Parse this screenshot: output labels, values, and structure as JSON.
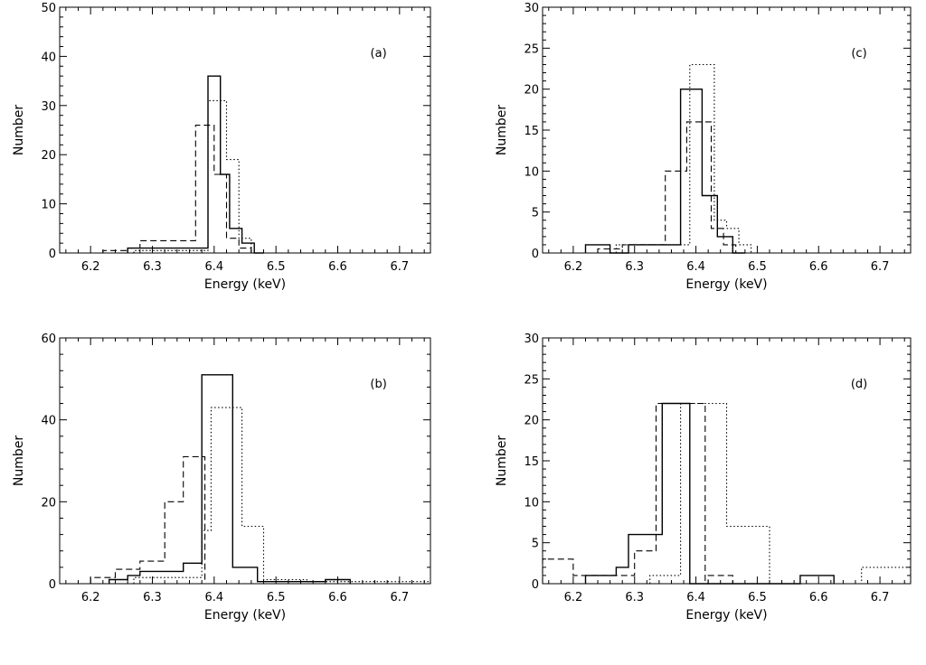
{
  "chart_data": [
    {
      "type": "histogram",
      "panel_label": "(a)",
      "xlabel": "Energy (keV)",
      "ylabel": "Number",
      "xlim": [
        6.15,
        6.75
      ],
      "ylim": [
        0,
        50
      ],
      "xticks": [
        "6.2",
        "6.3",
        "6.4",
        "6.5",
        "6.6",
        "6.7"
      ],
      "xtick_values": [
        6.2,
        6.3,
        6.4,
        6.5,
        6.6,
        6.7
      ],
      "yticks": [
        "0",
        "10",
        "20",
        "30",
        "40",
        "50"
      ],
      "ytick_values": [
        0,
        10,
        20,
        30,
        40,
        50
      ],
      "series": [
        {
          "style": "solid",
          "x": [
            6.26,
            6.38,
            6.39,
            6.41,
            6.425,
            6.445,
            6.465,
            6.48
          ],
          "values": [
            1,
            1,
            36,
            16,
            5,
            2,
            0
          ]
        },
        {
          "style": "dashed",
          "x": [
            6.22,
            6.26,
            6.28,
            6.37,
            6.38,
            6.4,
            6.42,
            6.44,
            6.46,
            6.47
          ],
          "values": [
            0.5,
            1,
            2.5,
            26,
            26,
            16,
            3,
            1,
            0
          ]
        },
        {
          "style": "dotted",
          "x": [
            6.27,
            6.39,
            6.4,
            6.42,
            6.44,
            6.46,
            6.48
          ],
          "values": [
            0.5,
            31,
            31,
            19,
            3,
            0
          ]
        }
      ]
    },
    {
      "type": "histogram",
      "panel_label": "(c)",
      "xlabel": "Energy (keV)",
      "ylabel": "Number",
      "xlim": [
        6.15,
        6.75
      ],
      "ylim": [
        0,
        30
      ],
      "xticks": [
        "6.2",
        "6.3",
        "6.4",
        "6.5",
        "6.6",
        "6.7"
      ],
      "xtick_values": [
        6.2,
        6.3,
        6.4,
        6.5,
        6.6,
        6.7
      ],
      "yticks": [
        "0",
        "5",
        "10",
        "15",
        "20",
        "25",
        "30"
      ],
      "ytick_values": [
        0,
        5,
        10,
        15,
        20,
        25,
        30
      ],
      "series": [
        {
          "style": "solid",
          "x": [
            6.22,
            6.26,
            6.29,
            6.375,
            6.41,
            6.435,
            6.46,
            6.48
          ],
          "values": [
            1,
            0,
            1,
            20,
            7,
            2,
            0
          ]
        },
        {
          "style": "dashed",
          "x": [
            6.24,
            6.28,
            6.35,
            6.365,
            6.385,
            6.425,
            6.445,
            6.465
          ],
          "values": [
            0.5,
            1,
            10,
            10,
            16,
            3,
            1
          ]
        },
        {
          "style": "dotted",
          "x": [
            6.27,
            6.39,
            6.43,
            6.45,
            6.47,
            6.49
          ],
          "values": [
            1,
            23,
            4,
            3,
            1
          ]
        }
      ]
    },
    {
      "type": "histogram",
      "panel_label": "(b)",
      "xlabel": "Energy (keV)",
      "ylabel": "Number",
      "xlim": [
        6.15,
        6.75
      ],
      "ylim": [
        0,
        60
      ],
      "xticks": [
        "6.2",
        "6.3",
        "6.4",
        "6.5",
        "6.6",
        "6.7"
      ],
      "xtick_values": [
        6.2,
        6.3,
        6.4,
        6.5,
        6.6,
        6.7
      ],
      "yticks": [
        "0",
        "20",
        "40",
        "60"
      ],
      "ytick_values": [
        0,
        20,
        40,
        60
      ],
      "series": [
        {
          "style": "solid",
          "x": [
            6.23,
            6.26,
            6.28,
            6.35,
            6.38,
            6.43,
            6.47,
            6.58,
            6.62
          ],
          "values": [
            1,
            2,
            3,
            5,
            51,
            4,
            0.5,
            1
          ]
        },
        {
          "style": "dashed",
          "x": [
            6.2,
            6.24,
            6.28,
            6.32,
            6.35,
            6.385,
            6.415
          ],
          "values": [
            1.5,
            3.5,
            5.5,
            20,
            31,
            0
          ]
        },
        {
          "style": "dotted",
          "x": [
            6.27,
            6.38,
            6.395,
            6.445,
            6.48,
            6.55,
            6.63,
            6.75
          ],
          "values": [
            1.5,
            13,
            43,
            14,
            1,
            0.5,
            0.5
          ]
        }
      ]
    },
    {
      "type": "histogram",
      "panel_label": "(d)",
      "xlabel": "Energy (keV)",
      "ylabel": "Number",
      "xlim": [
        6.15,
        6.75
      ],
      "ylim": [
        0,
        30
      ],
      "xticks": [
        "6.2",
        "6.3",
        "6.4",
        "6.5",
        "6.6",
        "6.7"
      ],
      "xtick_values": [
        6.2,
        6.3,
        6.4,
        6.5,
        6.6,
        6.7
      ],
      "yticks": [
        "0",
        "5",
        "10",
        "15",
        "20",
        "25",
        "30"
      ],
      "ytick_values": [
        0,
        5,
        10,
        15,
        20,
        25,
        30
      ],
      "series": [
        {
          "style": "solid",
          "x": [
            6.22,
            6.27,
            6.29,
            6.31,
            6.345,
            6.39,
            6.455,
            6.57,
            6.625
          ],
          "values": [
            1,
            2,
            6,
            6,
            22,
            0,
            0,
            1
          ]
        },
        {
          "style": "dashed",
          "x": [
            6.15,
            6.2,
            6.3,
            6.335,
            6.37,
            6.415,
            6.42,
            6.46,
            6.47
          ],
          "values": [
            3,
            1,
            4,
            22,
            22,
            0,
            1,
            0
          ]
        },
        {
          "style": "dotted",
          "x": [
            6.325,
            6.375,
            6.45,
            6.52,
            6.67,
            6.75
          ],
          "values": [
            1,
            22,
            7,
            0,
            2
          ]
        }
      ]
    }
  ]
}
